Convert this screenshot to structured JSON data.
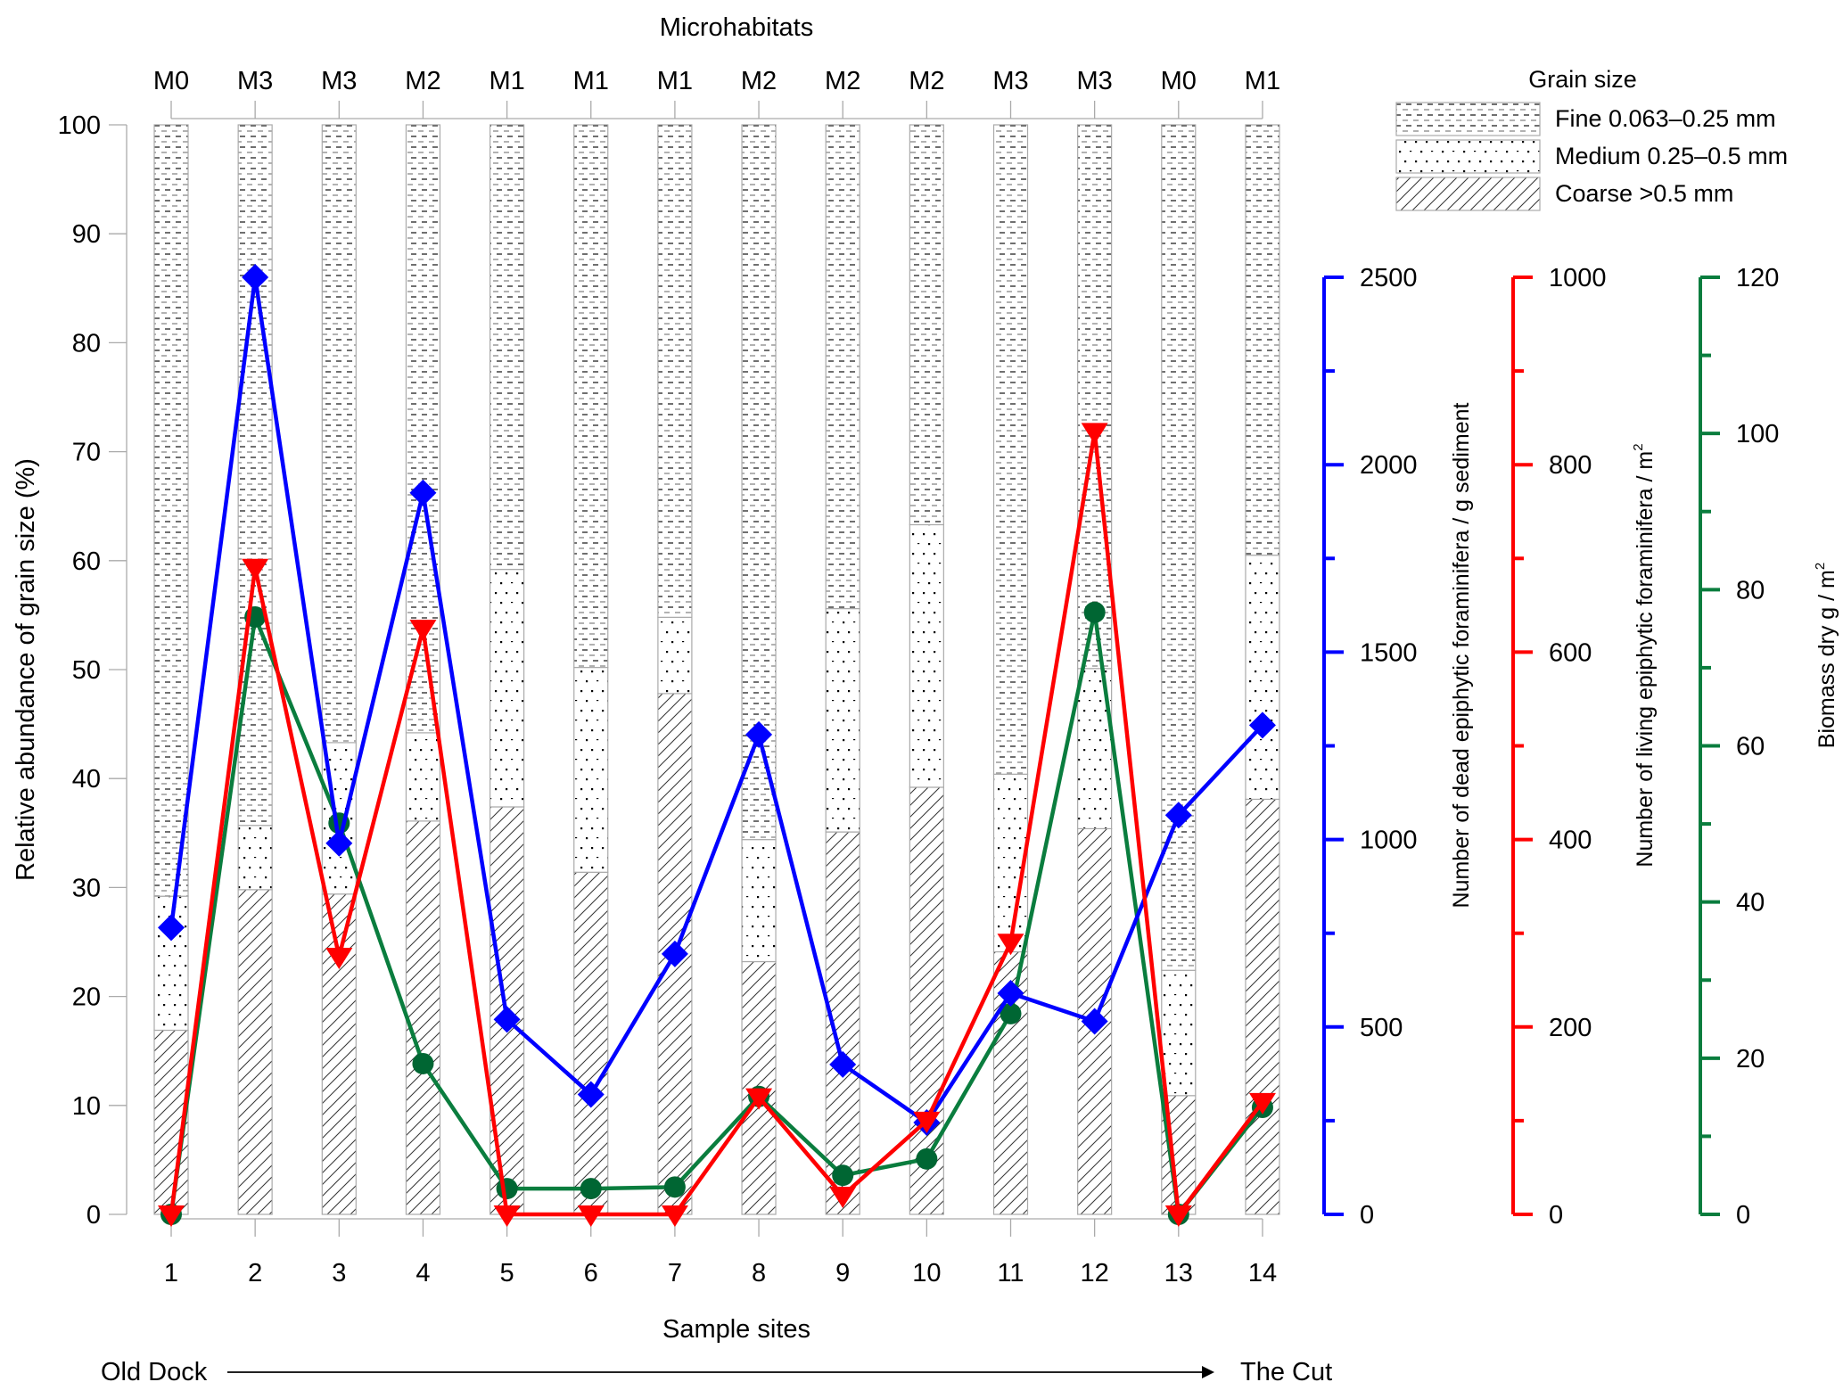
{
  "chart_data": {
    "type": "bar",
    "subtype": "stacked bar with overlaid multi-axis lines",
    "title": "",
    "top_axis_title": "Microhabitats",
    "xlabel": "Sample sites",
    "ylabel": "Relative abundance of grain size (%)",
    "ylim": [
      0,
      100
    ],
    "yticks": [
      0,
      10,
      20,
      30,
      40,
      50,
      60,
      70,
      80,
      90,
      100
    ],
    "grid": false,
    "categories": [
      "1",
      "2",
      "3",
      "4",
      "5",
      "6",
      "7",
      "8",
      "9",
      "10",
      "11",
      "12",
      "13",
      "14"
    ],
    "microhabitats": [
      "M0",
      "M3",
      "M3",
      "M2",
      "M1",
      "M1",
      "M1",
      "M2",
      "M2",
      "M2",
      "M3",
      "M3",
      "M0",
      "M1"
    ],
    "direction": {
      "start": "Old Dock",
      "end": "The Cut"
    },
    "legend": {
      "title": "Grain size",
      "position": "top-right",
      "entries": [
        {
          "key": "fine",
          "label": "Fine 0.063–0.25 mm"
        },
        {
          "key": "medium",
          "label": "Medium 0.25–0.5 mm"
        },
        {
          "key": "coarse",
          "label": "Coarse >0.5 mm"
        }
      ]
    },
    "bar_series": [
      {
        "name": "Coarse >0.5 mm",
        "key": "coarse",
        "values": [
          16.9,
          29.8,
          29.4,
          36.1,
          37.4,
          31.4,
          47.8,
          23.2,
          35.1,
          39.2,
          24.1,
          35.4,
          10.9,
          38.1
        ]
      },
      {
        "name": "Medium 0.25–0.5 mm",
        "key": "medium",
        "values": [
          12.3,
          5.9,
          13.9,
          8.1,
          21.8,
          18.8,
          7.0,
          11.2,
          20.5,
          24.1,
          16.3,
          14.7,
          11.5,
          22.4
        ]
      },
      {
        "name": "Fine 0.063–0.25 mm",
        "key": "fine",
        "values": [
          70.8,
          64.3,
          56.7,
          55.8,
          40.8,
          49.8,
          45.2,
          65.6,
          44.4,
          36.7,
          59.6,
          49.9,
          77.6,
          39.5
        ]
      }
    ],
    "line_series": [
      {
        "name": "Number of dead epiphytic foraminifera / g sediment",
        "axis": "right-1",
        "color": "#0000ff",
        "marker": "diamond",
        "ylim": [
          0,
          2500
        ],
        "yticks": [
          0,
          500,
          1000,
          1500,
          2000,
          2500
        ],
        "minor_step": 250,
        "values": [
          765,
          2500,
          990,
          1925,
          520,
          320,
          695,
          1280,
          400,
          245,
          590,
          515,
          1065,
          1305
        ]
      },
      {
        "name": "Number of living epiphytic foraminifera / m²",
        "axis": "right-2",
        "color": "#ff0000",
        "marker": "triangle-down",
        "ylim": [
          0,
          1000
        ],
        "yticks": [
          0,
          200,
          400,
          600,
          800,
          1000
        ],
        "minor_step": 100,
        "values": [
          0,
          690,
          275,
          625,
          0,
          0,
          0,
          125,
          20,
          100,
          290,
          835,
          0,
          120
        ]
      },
      {
        "name": "Biomass dry g / m²",
        "axis": "right-3",
        "color": "#0a7d3e",
        "marker_color": "#006633",
        "marker": "circle",
        "ylim": [
          0,
          120
        ],
        "yticks": [
          0,
          20,
          40,
          60,
          80,
          100,
          120
        ],
        "minor_step": 10,
        "values": [
          0,
          76.5,
          50.1,
          19.3,
          3.3,
          3.3,
          3.5,
          15.1,
          5.0,
          7.1,
          25.7,
          77.1,
          0,
          13.7
        ]
      }
    ],
    "axis_titles": {
      "blue": "Number of dead epiphytic foraminifera / g sediment",
      "red_main": "Number of living epiphytic foraminifera / m",
      "green_main": "Biomass dry g / m",
      "superscript": "2"
    }
  }
}
